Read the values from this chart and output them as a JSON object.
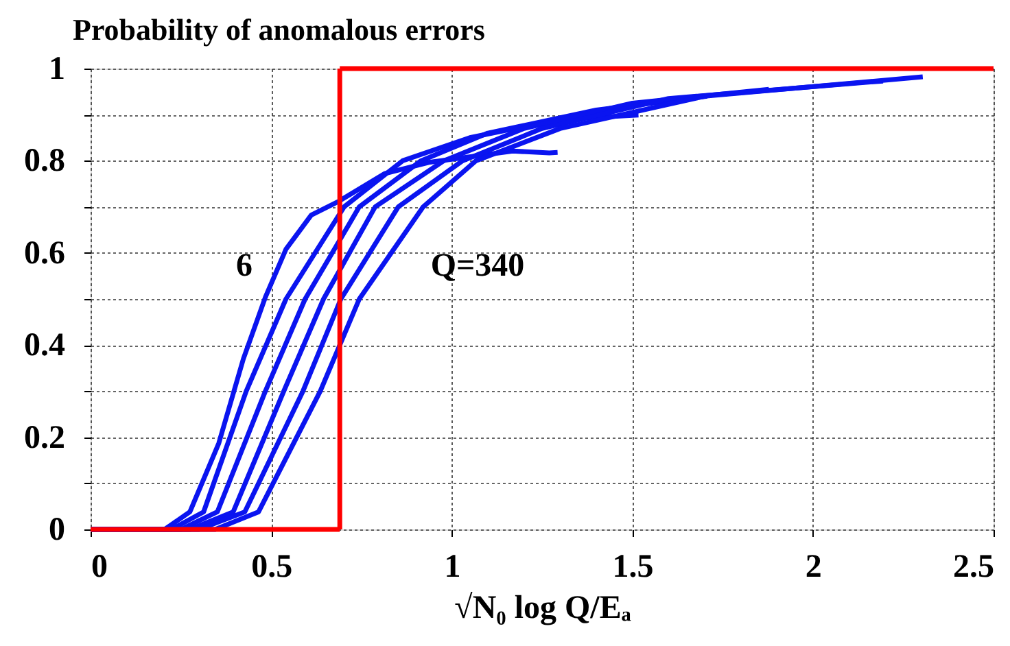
{
  "chart_data": {
    "type": "line",
    "title": "Probability of anomalous errors",
    "xlabel": "√N₀ log Q/Eₐ",
    "xlim": [
      0,
      2.5
    ],
    "xticks": [
      0,
      0.5,
      1,
      1.5,
      2,
      2.5
    ],
    "ylim": [
      0,
      1
    ],
    "yticks": [
      0,
      {
        "value": 0.1,
        "label": null
      },
      0.2,
      {
        "value": 0.3,
        "label": null
      },
      0.4,
      {
        "value": 0.5,
        "label": null
      },
      0.6,
      {
        "value": 0.7,
        "label": null
      },
      0.8,
      {
        "value": 0.9,
        "label": null
      },
      1
    ],
    "grid": true,
    "legend": false,
    "marker": "none",
    "line_style": "solid",
    "series": [
      {
        "color": "#0a14f0",
        "x": [
          0,
          0.205,
          0.275,
          0.355,
          0.423,
          0.484,
          0.541,
          0.611,
          0.687,
          0.814,
          0.94,
          1.169,
          1.27,
          1.293
        ],
        "values": [
          0,
          0,
          0.038,
          0.187,
          0.37,
          0.504,
          0.608,
          0.682,
          0.712,
          0.772,
          0.797,
          0.821,
          0.817,
          0.818
        ]
      },
      {
        "color": "#0a14f0",
        "x": [
          0,
          0.224,
          0.313,
          0.431,
          0.541,
          0.702,
          0.864,
          1.05,
          1.3,
          1.517
        ],
        "values": [
          0,
          0,
          0.038,
          0.3,
          0.5,
          0.7,
          0.8,
          0.85,
          0.89,
          0.899
        ]
      },
      {
        "color": "#0a14f0",
        "x": [
          0,
          0.25,
          0.351,
          0.484,
          0.594,
          0.744,
          0.915,
          1.1,
          1.4,
          1.707
        ],
        "values": [
          0,
          0,
          0.038,
          0.3,
          0.5,
          0.7,
          0.8,
          0.86,
          0.91,
          0.94
        ]
      },
      {
        "color": "#0a14f0",
        "x": [
          0,
          0.275,
          0.395,
          0.535,
          0.645,
          0.788,
          0.978,
          1.2,
          1.5,
          1.878
        ],
        "values": [
          0,
          0,
          0.038,
          0.3,
          0.5,
          0.7,
          0.8,
          0.87,
          0.925,
          0.955
        ]
      },
      {
        "color": "#0a14f0",
        "x": [
          0,
          0.3,
          0.427,
          0.588,
          0.693,
          0.852,
          1.03,
          1.25,
          1.6,
          2.194
        ],
        "values": [
          0,
          0,
          0.038,
          0.3,
          0.5,
          0.7,
          0.8,
          0.87,
          0.935,
          0.973
        ]
      },
      {
        "color": "#0a14f0",
        "x": [
          0,
          0.345,
          0.465,
          0.636,
          0.744,
          0.921,
          1.067,
          1.3,
          1.7,
          2.304
        ],
        "values": [
          0,
          0,
          0.038,
          0.3,
          0.5,
          0.7,
          0.8,
          0.87,
          0.94,
          0.982
        ]
      },
      {
        "color": "#ff0000",
        "x": [
          0,
          0.69
        ],
        "values": [
          0,
          0
        ]
      },
      {
        "color": "#ff0000",
        "x": [
          0.69,
          2.5
        ],
        "values": [
          1,
          1
        ]
      }
    ],
    "ref_lines": [
      {
        "axis": "x",
        "value": 0.69,
        "color": "#ff0000",
        "line_style": "solid"
      }
    ],
    "annotations": [
      "6",
      "Q=340"
    ]
  }
}
